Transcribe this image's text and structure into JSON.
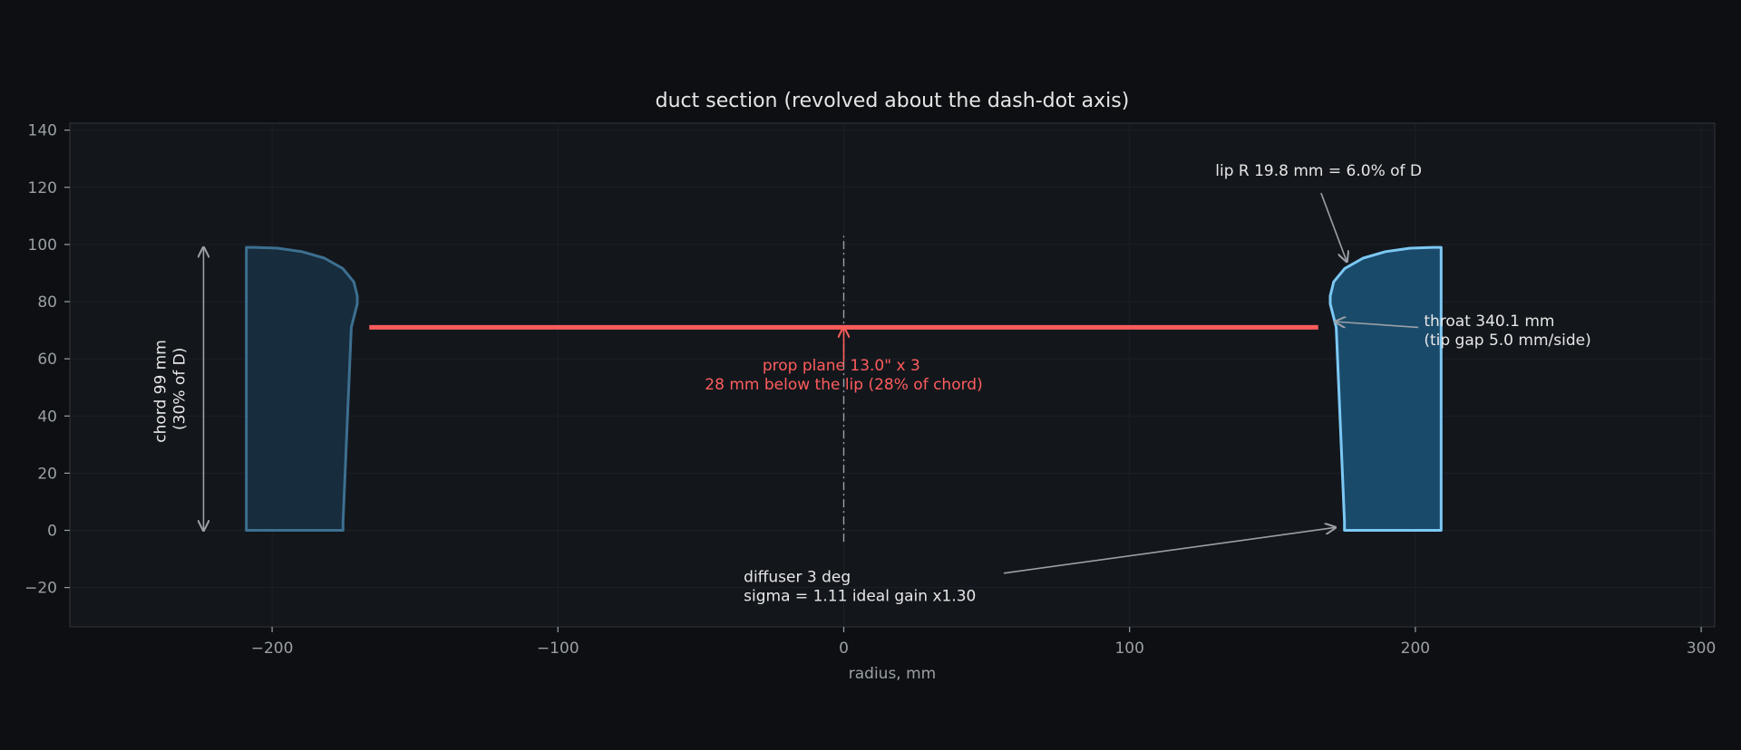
{
  "chart_data": {
    "type": "line",
    "title": "duct section (revolved about the dash-dot axis)",
    "xlabel": "radius, mm",
    "ylabel": "",
    "xlim": [
      -272,
      300
    ],
    "ylim": [
      -33,
      143
    ],
    "xticks": [
      -200,
      -100,
      0,
      100,
      200,
      300
    ],
    "xtick_labels": [
      "−200",
      "−100",
      "0",
      "100",
      "200",
      "300"
    ],
    "yticks": [
      -20,
      0,
      20,
      40,
      60,
      80,
      100,
      120,
      140
    ],
    "ytick_labels": [
      "−20",
      "0",
      "20",
      "40",
      "60",
      "80",
      "100",
      "120",
      "140"
    ],
    "grid": true,
    "colors": {
      "background": "#0d0f12",
      "plot_bg": "#13171c",
      "right_section": "#7cc8f4",
      "left_section": "#3d6f90",
      "prop_plane": "#ff5c5c",
      "annotation": "#9aa0a6"
    },
    "series": [
      {
        "name": "",
        "side": "right",
        "x": [
          209,
          209,
          175.2,
          175.2,
          172.3,
          170.2,
          170.2,
          171.4,
          175.3,
          181.7,
          189.6,
          198.1,
          206.2,
          209
        ],
        "y": [
          99,
          0,
          0,
          3,
          71,
          79.2,
          82,
          86.9,
          91.6,
          95.2,
          97.5,
          98.7,
          99,
          99
        ]
      },
      {
        "name": "",
        "side": "left",
        "x": [
          -209,
          -209,
          -175.2,
          -175.2,
          -172.3,
          -170.2,
          -170.2,
          -171.4,
          -175.3,
          -181.7,
          -189.6,
          -198.1,
          -206.2,
          -209
        ],
        "y": [
          99,
          0,
          0,
          3,
          71,
          79.2,
          82,
          86.9,
          91.6,
          95.2,
          97.5,
          98.7,
          99,
          99
        ]
      }
    ],
    "prop_plane": {
      "x": [
        -166,
        166
      ],
      "y": 71
    },
    "axis_line": {
      "x": 0,
      "y": [
        -4,
        103
      ]
    },
    "annotations": {
      "lip": {
        "text": "lip R 19.8 mm = 6.0% of D",
        "text_at": [
          130,
          124
        ],
        "arrow_from": [
          167,
          118
        ],
        "arrow_to": [
          176,
          94
        ]
      },
      "throat": {
        "lines": [
          "throat 340.1 mm",
          "(tip gap 5.0 mm/side)"
        ],
        "text_at": [
          203,
          71.5
        ],
        "arrow_from": [
          201,
          71
        ],
        "arrow_to": [
          172,
          73
        ]
      },
      "prop": {
        "lines": [
          "prop plane  13.0\" x 3",
          "28 mm below the lip (28% of chord)"
        ],
        "text_at": [
          0,
          56
        ],
        "arrow_from": [
          0,
          59
        ],
        "arrow_to": [
          0,
          71
        ]
      },
      "diffuser": {
        "lines": [
          "diffuser 3 deg",
          "sigma = 1.11   ideal gain x1.30"
        ],
        "text_at": [
          -35,
          -18
        ],
        "arrow_from": [
          56,
          -15
        ],
        "arrow_to": [
          172,
          1
        ]
      },
      "chord": {
        "lines": [
          "chord 99 mm",
          "(30% of D)"
        ],
        "x": -224,
        "y": [
          0,
          99
        ]
      }
    }
  }
}
